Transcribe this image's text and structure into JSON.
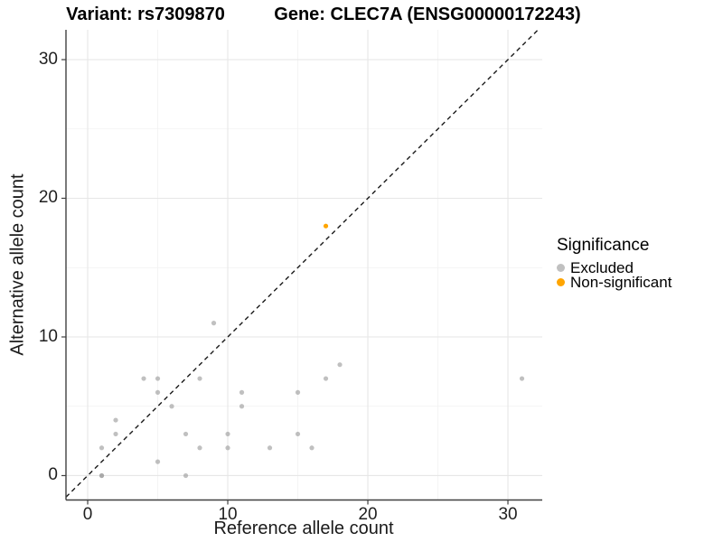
{
  "titles": {
    "variant": "Variant: rs7309870",
    "gene": "Gene: CLEC7A (ENSG00000172243)"
  },
  "axes": {
    "x_label": "Reference allele count",
    "y_label": "Alternative allele count"
  },
  "legend": {
    "title": "Significance",
    "items": [
      {
        "label": "Excluded",
        "color": "#9E9E9E",
        "opacity": 0.65
      },
      {
        "label": "Non-significant",
        "color": "#FFA500",
        "opacity": 1
      }
    ]
  },
  "chart_data": {
    "type": "scatter",
    "title": "Variant: rs7309870 / Gene: CLEC7A (ENSG00000172243)",
    "xlabel": "Reference allele count",
    "ylabel": "Alternative allele count",
    "xlim": [
      -1.55,
      32.45
    ],
    "ylim": [
      -1.76,
      32.15
    ],
    "x_ticks": [
      0,
      10,
      20,
      30
    ],
    "y_ticks": [
      0,
      10,
      20,
      30
    ],
    "x_minor_ticks": [
      5,
      15,
      25
    ],
    "y_minor_ticks": [
      5,
      15,
      25
    ],
    "grid": true,
    "legend_position": "right",
    "reference_line": {
      "type": "identity y=x",
      "style": "dashed",
      "color": "#1A1A1A"
    },
    "colors": {
      "grid_major": "#E6E6E6",
      "grid_minor": "#F1F1F1",
      "axis": "#404040"
    },
    "series": [
      {
        "name": "Excluded",
        "color": "#9E9E9E",
        "opacity": 0.65,
        "points": [
          [
            1,
            0
          ],
          [
            1,
            0
          ],
          [
            7,
            0
          ],
          [
            5,
            1
          ],
          [
            1,
            2
          ],
          [
            8,
            2
          ],
          [
            10,
            2
          ],
          [
            13,
            2
          ],
          [
            16,
            2
          ],
          [
            2,
            3
          ],
          [
            7,
            3
          ],
          [
            10,
            3
          ],
          [
            15,
            3
          ],
          [
            2,
            4
          ],
          [
            6,
            5
          ],
          [
            11,
            5
          ],
          [
            5,
            6
          ],
          [
            11,
            6
          ],
          [
            15,
            6
          ],
          [
            4,
            7
          ],
          [
            5,
            7
          ],
          [
            8,
            7
          ],
          [
            17,
            7
          ],
          [
            31,
            7
          ],
          [
            18,
            8
          ],
          [
            9,
            11
          ]
        ]
      },
      {
        "name": "Non-significant",
        "color": "#FFA500",
        "opacity": 1,
        "points": [
          [
            17,
            18
          ]
        ]
      }
    ]
  }
}
